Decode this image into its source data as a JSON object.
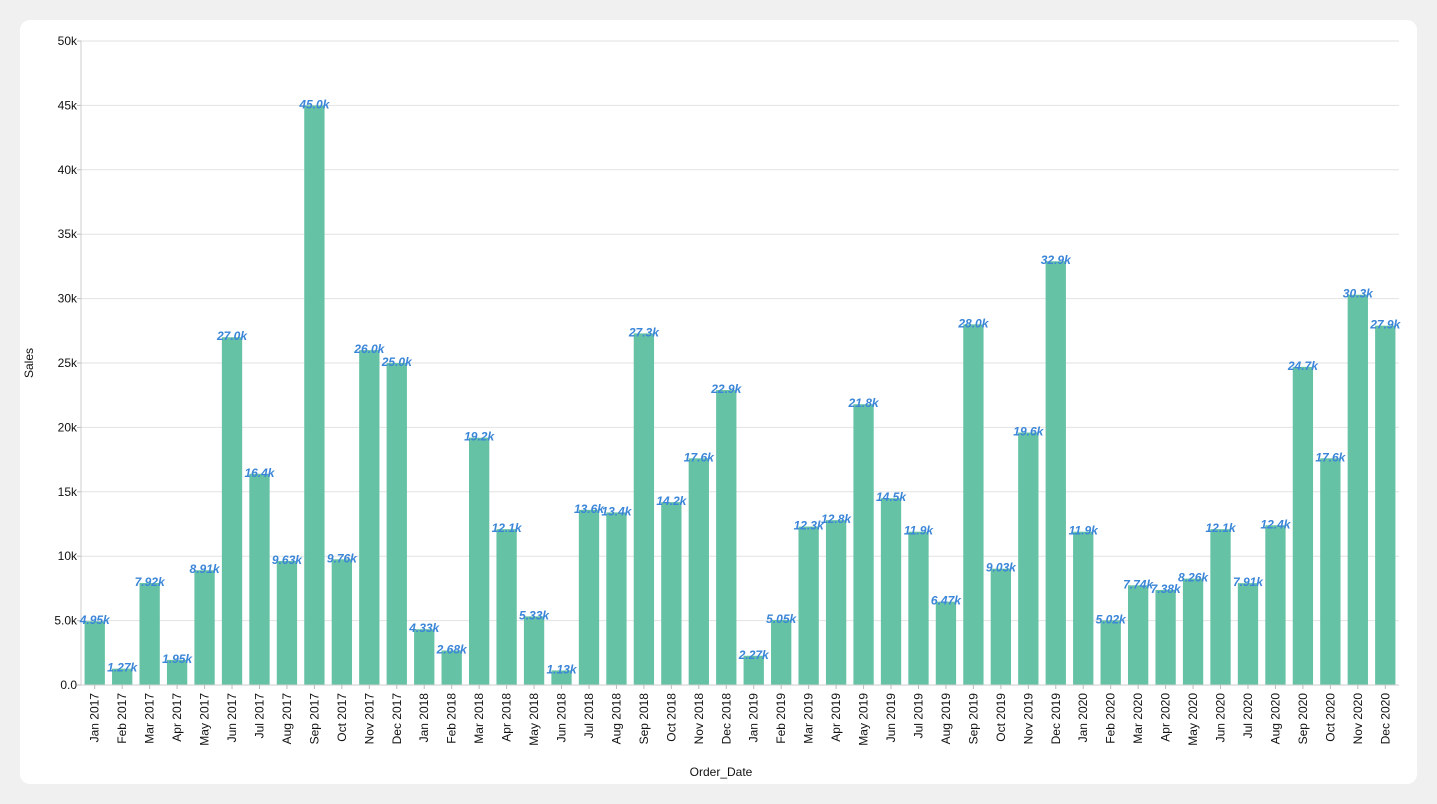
{
  "chart_data": {
    "type": "bar",
    "xlabel": "Order_Date",
    "ylabel": "Sales",
    "ylim": [
      0,
      50000
    ],
    "yticks": [
      0,
      5000,
      10000,
      15000,
      20000,
      25000,
      30000,
      35000,
      40000,
      45000,
      50000
    ],
    "ytick_labels": [
      "0.0",
      "5.0k",
      "10k",
      "15k",
      "20k",
      "25k",
      "30k",
      "35k",
      "40k",
      "45k",
      "50k"
    ],
    "grid": true,
    "bar_color": "#66c2a5",
    "label_color": "#3b86d8",
    "categories": [
      "Jan 2017",
      "Feb 2017",
      "Mar 2017",
      "Apr 2017",
      "May 2017",
      "Jun 2017",
      "Jul 2017",
      "Aug 2017",
      "Sep 2017",
      "Oct 2017",
      "Nov 2017",
      "Dec 2017",
      "Jan 2018",
      "Feb 2018",
      "Mar 2018",
      "Apr 2018",
      "May 2018",
      "Jun 2018",
      "Jul 2018",
      "Aug 2018",
      "Sep 2018",
      "Oct 2018",
      "Nov 2018",
      "Dec 2018",
      "Jan 2019",
      "Feb 2019",
      "Mar 2019",
      "Apr 2019",
      "May 2019",
      "Jun 2019",
      "Jul 2019",
      "Aug 2019",
      "Sep 2019",
      "Oct 2019",
      "Nov 2019",
      "Dec 2019",
      "Jan 2020",
      "Feb 2020",
      "Mar 2020",
      "Apr 2020",
      "May 2020",
      "Jun 2020",
      "Jul 2020",
      "Aug 2020",
      "Sep 2020",
      "Oct 2020",
      "Nov 2020",
      "Dec 2020"
    ],
    "values": [
      4950,
      1270,
      7920,
      1950,
      8910,
      27000,
      16400,
      9630,
      45000,
      9760,
      26000,
      25000,
      4330,
      2680,
      19200,
      12100,
      5330,
      1130,
      13600,
      13400,
      27300,
      14200,
      17600,
      22900,
      2270,
      5050,
      12300,
      12800,
      21800,
      14500,
      11900,
      6470,
      28000,
      9030,
      19600,
      32900,
      11900,
      5020,
      7740,
      7380,
      8260,
      12100,
      7910,
      12400,
      24700,
      17600,
      30300,
      27900
    ],
    "data_labels": [
      "4.95k",
      "1.27k",
      "7.92k",
      "1.95k",
      "8.91k",
      "27.0k",
      "16.4k",
      "9.63k",
      "45.0k",
      "9.76k",
      "26.0k",
      "25.0k",
      "4.33k",
      "2.68k",
      "19.2k",
      "12.1k",
      "5.33k",
      "1.13k",
      "13.6k",
      "13.4k",
      "27.3k",
      "14.2k",
      "17.6k",
      "22.9k",
      "2.27k",
      "5.05k",
      "12.3k",
      "12.8k",
      "21.8k",
      "14.5k",
      "11.9k",
      "6.47k",
      "28.0k",
      "9.03k",
      "19.6k",
      "32.9k",
      "11.9k",
      "5.02k",
      "7.74k",
      "7.38k",
      "8.26k",
      "12.1k",
      "7.91k",
      "12.4k",
      "24.7k",
      "17.6k",
      "30.3k",
      "27.9k"
    ]
  }
}
